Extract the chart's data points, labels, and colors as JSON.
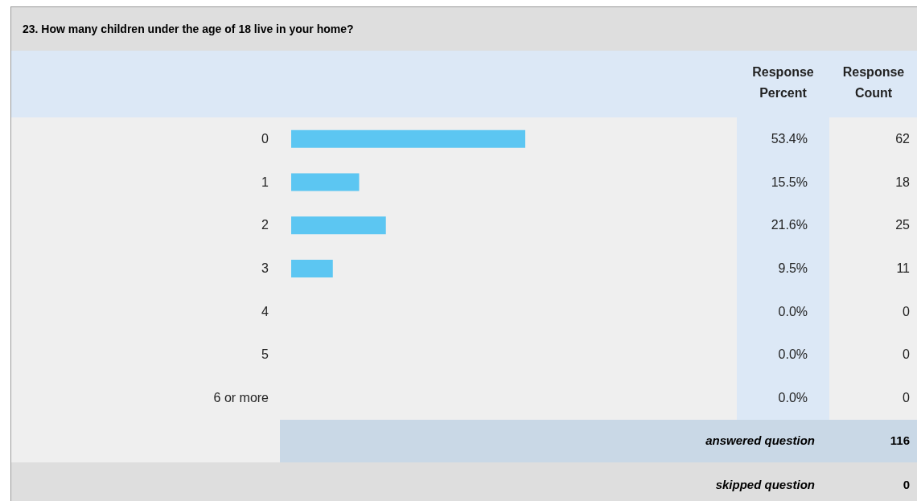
{
  "chart_data": {
    "type": "bar",
    "orientation": "horizontal",
    "title": "23. How many children under the age of 18 live in your home?",
    "categories": [
      "0",
      "1",
      "2",
      "3",
      "4",
      "5",
      "6 or more"
    ],
    "tick_labels": false,
    "series": [
      {
        "name": "Response Percent",
        "color": "#5cc6f2",
        "values": [
          53.4,
          15.5,
          21.6,
          9.5,
          0,
          0,
          0
        ],
        "value_labels": [
          "53.4%",
          "15.5%",
          "21.6%",
          "9.5%",
          "0.0%",
          "0.0%",
          "0.0%"
        ]
      }
    ],
    "annotations": [
      "Response Count",
      "62",
      "18",
      "25",
      "11",
      "0",
      "0",
      "0",
      "answered question",
      "116",
      "skipped question",
      "0"
    ]
  }
}
